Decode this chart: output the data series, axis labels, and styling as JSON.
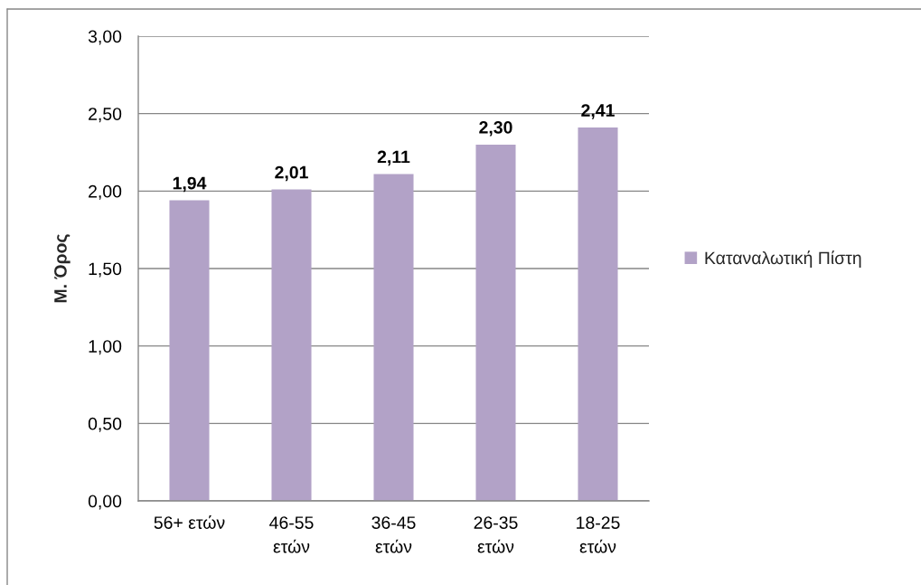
{
  "chart_data": {
    "type": "bar",
    "categories": [
      "56+ ετών",
      "46-55\nετών",
      "36-45\nετών",
      "26-35\nετών",
      "18-25\nετών"
    ],
    "ylabel": "Μ. Όρος",
    "series": [
      {
        "name": "Καταναλωτική Πίστη",
        "color": "#b2a2c7",
        "values": [
          1.94,
          2.01,
          2.11,
          2.3,
          2.41
        ],
        "value_labels": [
          "1,94",
          "2,01",
          "2,11",
          "2,30",
          "2,41"
        ]
      }
    ],
    "ylim": [
      0,
      3
    ],
    "yticks": [
      {
        "value": 0,
        "label": "0,00"
      },
      {
        "value": 0.5,
        "label": "0,50"
      },
      {
        "value": 1,
        "label": "1,00"
      },
      {
        "value": 1.5,
        "label": "1,50"
      },
      {
        "value": 2,
        "label": "2,00"
      },
      {
        "value": 2.5,
        "label": "2,50"
      },
      {
        "value": 3,
        "label": "3,00"
      }
    ],
    "grid": "y",
    "legend": "right"
  }
}
